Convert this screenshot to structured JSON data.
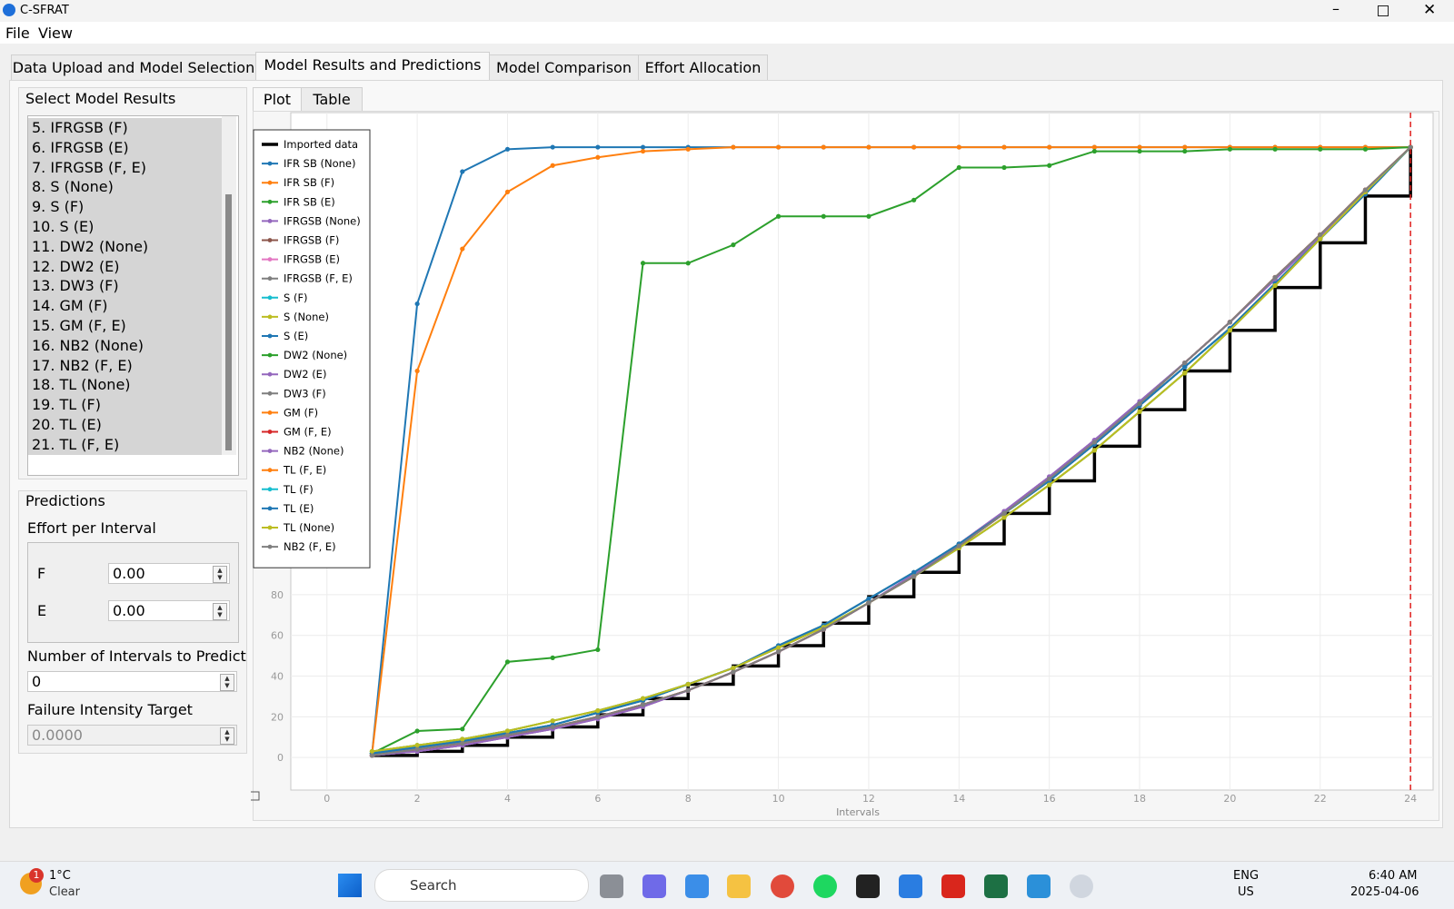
{
  "window": {
    "title": "C-SFRAT"
  },
  "menu": [
    "File",
    "View"
  ],
  "tabs": [
    "Data Upload and Model Selection",
    "Model Results and Predictions",
    "Model Comparison",
    "Effort Allocation"
  ],
  "sidebar": {
    "results_title": "Select Model Results",
    "results": [
      "5. IFRGSB (F)",
      "6. IFRGSB (E)",
      "7. IFRGSB (F, E)",
      "8. S (None)",
      "9. S (F)",
      "10. S (E)",
      "11. DW2 (None)",
      "12. DW2 (E)",
      "13. DW3 (F)",
      "14. GM (F)",
      "15. GM (F, E)",
      "16. NB2 (None)",
      "17. NB2 (F, E)",
      "18. TL (None)",
      "19. TL (F)",
      "20. TL (E)",
      "21. TL (F, E)"
    ],
    "predictions_title": "Predictions",
    "effort_title": "Effort per Interval",
    "effort": [
      {
        "label": "F",
        "value": "0.00"
      },
      {
        "label": "E",
        "value": "0.00"
      }
    ],
    "intervals_label": "Number of Intervals to Predict",
    "intervals_value": "0",
    "target_label": "Failure Intensity Target",
    "target_value": "0.0000"
  },
  "subtabs": [
    "Plot",
    "Table"
  ],
  "chart_data": {
    "type": "line",
    "x_label": "Intervals",
    "x": [
      1,
      2,
      3,
      4,
      5,
      6,
      7,
      8,
      9,
      10,
      11,
      12,
      13,
      14,
      15,
      16,
      17,
      18,
      19,
      20,
      21,
      22,
      23,
      24
    ],
    "xlim": [
      -0.8,
      24.5
    ],
    "xticks": [
      0,
      2,
      4,
      6,
      8,
      10,
      12,
      14,
      16,
      18,
      20,
      22,
      24
    ],
    "ylim": [
      -16,
      317
    ],
    "yticks": [
      0,
      20,
      40,
      60,
      80
    ],
    "grid": true,
    "series": [
      {
        "name": "Imported data",
        "color": "#000000",
        "step": true,
        "values": [
          1,
          3,
          6,
          10,
          15,
          21,
          29,
          36,
          45,
          55,
          66,
          79,
          91,
          105,
          120,
          136,
          153,
          171,
          190,
          210,
          231,
          253,
          276,
          300
        ]
      },
      {
        "name": "IFR SB (None)",
        "color": "#1f77b4",
        "values": [
          2,
          223,
          288,
          299,
          300,
          300,
          300,
          300,
          300,
          300,
          300,
          300,
          300,
          300,
          300,
          300,
          300,
          300,
          300,
          300,
          300,
          300,
          300,
          300
        ]
      },
      {
        "name": "IFR SB (F)",
        "color": "#ff7f0e",
        "values": [
          2,
          190,
          250,
          278,
          291,
          295,
          298,
          299,
          300,
          300,
          300,
          300,
          300,
          300,
          300,
          300,
          300,
          300,
          300,
          300,
          300,
          300,
          300,
          300
        ]
      },
      {
        "name": "IFR SB (E)",
        "color": "#2ca02c",
        "values": [
          2,
          13,
          14,
          47,
          49,
          53,
          243,
          243,
          252,
          266,
          266,
          266,
          274,
          290,
          290,
          291,
          298,
          298,
          298,
          299,
          299,
          299,
          299,
          300
        ]
      },
      {
        "name": "IFRGSB (None)",
        "color": "#9467bd",
        "values": [
          1,
          3,
          6,
          10,
          14,
          19,
          25,
          33,
          42,
          52,
          63,
          76,
          90,
          105,
          121,
          138,
          156,
          175,
          194,
          214,
          235,
          256,
          278,
          300
        ]
      },
      {
        "name": "IFRGSB (F)",
        "color": "#8c564b",
        "values": [
          1,
          4,
          7,
          11,
          15,
          20,
          26,
          33,
          42,
          52,
          63,
          76,
          89,
          104,
          120,
          137,
          155,
          174,
          194,
          214,
          236,
          257,
          279,
          300
        ]
      },
      {
        "name": "IFRGSB (E)",
        "color": "#e377c2",
        "values": [
          1,
          3,
          6,
          10,
          14,
          19,
          25,
          33,
          42,
          52,
          63,
          76,
          90,
          105,
          121,
          138,
          156,
          175,
          194,
          214,
          235,
          256,
          278,
          300
        ]
      },
      {
        "name": "IFRGSB (F, E)",
        "color": "#7f7f7f",
        "values": [
          1,
          4,
          7,
          11,
          15,
          20,
          26,
          33,
          42,
          52,
          63,
          76,
          89,
          104,
          120,
          137,
          155,
          174,
          194,
          214,
          236,
          257,
          279,
          300
        ]
      },
      {
        "name": "S (F)",
        "color": "#17becf",
        "values": [
          2,
          5,
          8,
          12,
          16,
          22,
          28,
          36,
          44,
          55,
          65,
          78,
          91,
          105,
          120,
          136,
          154,
          173,
          192,
          211,
          233,
          255,
          277,
          300
        ]
      },
      {
        "name": "S (None)",
        "color": "#bcbd22",
        "values": [
          3,
          6,
          9,
          13,
          18,
          23,
          29,
          36,
          44,
          54,
          64,
          76,
          89,
          103,
          118,
          134,
          151,
          170,
          189,
          210,
          232,
          255,
          278,
          300
        ]
      },
      {
        "name": "S (E)",
        "color": "#1f77b4",
        "values": [
          2,
          5,
          8,
          12,
          16,
          22,
          28,
          36,
          44,
          55,
          65,
          78,
          91,
          105,
          120,
          136,
          154,
          173,
          192,
          211,
          233,
          255,
          277,
          300
        ]
      },
      {
        "name": "DW2 (None)",
        "color": "#2ca02c",
        "values": [
          3,
          6,
          9,
          13,
          18,
          23,
          29,
          36,
          44,
          54,
          64,
          76,
          89,
          103,
          118,
          134,
          151,
          170,
          189,
          210,
          232,
          255,
          278,
          300
        ]
      },
      {
        "name": "DW2 (E)",
        "color": "#9467bd",
        "values": [
          1,
          3,
          6,
          10,
          14,
          19,
          25,
          33,
          42,
          52,
          63,
          76,
          90,
          105,
          121,
          138,
          156,
          175,
          194,
          214,
          235,
          256,
          278,
          300
        ]
      },
      {
        "name": "DW3 (F)",
        "color": "#7f7f7f",
        "values": [
          1,
          4,
          7,
          11,
          15,
          20,
          26,
          33,
          42,
          52,
          63,
          76,
          89,
          104,
          120,
          137,
          155,
          174,
          194,
          214,
          236,
          257,
          279,
          300
        ]
      },
      {
        "name": "GM (F)",
        "color": "#ff7f0e",
        "values": [
          1,
          4,
          7,
          11,
          15,
          20,
          26,
          33,
          42,
          52,
          63,
          76,
          89,
          104,
          120,
          137,
          155,
          174,
          194,
          214,
          236,
          257,
          279,
          300
        ]
      },
      {
        "name": "GM (F, E)",
        "color": "#d62728",
        "values": [
          1,
          4,
          7,
          11,
          15,
          20,
          26,
          33,
          42,
          52,
          63,
          76,
          89,
          104,
          120,
          137,
          155,
          174,
          194,
          214,
          236,
          257,
          279,
          300
        ]
      },
      {
        "name": "NB2 (None)",
        "color": "#9467bd",
        "values": [
          1,
          3,
          6,
          10,
          14,
          19,
          25,
          33,
          42,
          52,
          63,
          76,
          90,
          105,
          121,
          138,
          156,
          175,
          194,
          214,
          235,
          256,
          278,
          300
        ]
      },
      {
        "name": "TL (F, E)",
        "color": "#ff7f0e",
        "values": [
          2,
          5,
          8,
          12,
          16,
          22,
          28,
          36,
          44,
          55,
          65,
          78,
          91,
          105,
          120,
          136,
          154,
          173,
          192,
          211,
          233,
          255,
          277,
          300
        ]
      },
      {
        "name": "TL (F)",
        "color": "#17becf",
        "values": [
          2,
          5,
          8,
          12,
          16,
          22,
          28,
          36,
          44,
          55,
          65,
          78,
          91,
          105,
          120,
          136,
          154,
          173,
          192,
          211,
          233,
          255,
          277,
          300
        ]
      },
      {
        "name": "TL (E)",
        "color": "#1f77b4",
        "values": [
          2,
          5,
          8,
          12,
          16,
          22,
          28,
          36,
          44,
          55,
          65,
          78,
          91,
          105,
          120,
          136,
          154,
          173,
          192,
          211,
          233,
          255,
          277,
          300
        ]
      },
      {
        "name": "TL (None)",
        "color": "#bcbd22",
        "values": [
          3,
          6,
          9,
          13,
          18,
          23,
          29,
          36,
          44,
          54,
          64,
          76,
          89,
          103,
          118,
          134,
          151,
          170,
          189,
          210,
          232,
          255,
          278,
          300
        ]
      },
      {
        "name": "NB2 (F, E)",
        "color": "#7f7f7f",
        "values": [
          1,
          4,
          7,
          11,
          15,
          20,
          26,
          33,
          42,
          52,
          63,
          76,
          89,
          104,
          120,
          137,
          155,
          174,
          194,
          214,
          236,
          257,
          279,
          300
        ]
      }
    ]
  },
  "taskbar": {
    "weather_badge": "1",
    "temperature": "1°C",
    "condition": "Clear",
    "search": "Search",
    "language": "ENG",
    "region": "US",
    "time": "6:40 AM",
    "date": "2025-04-06"
  }
}
